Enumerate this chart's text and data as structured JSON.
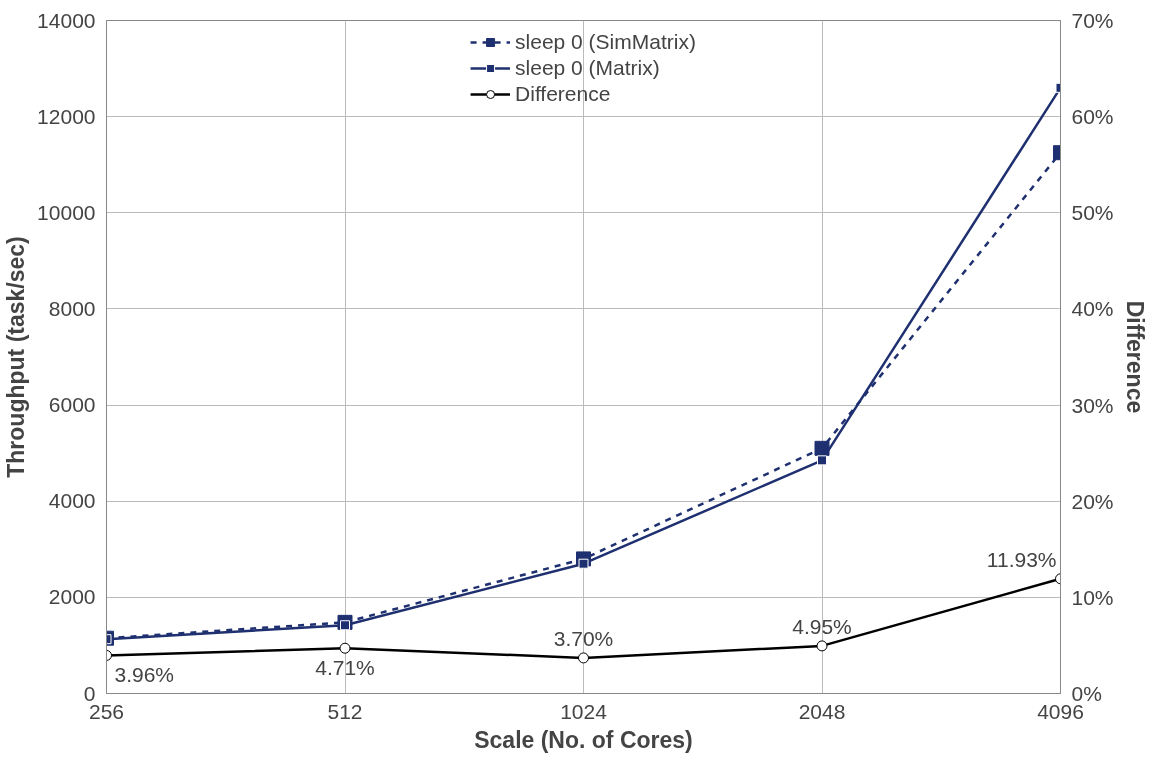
{
  "chart_data": {
    "type": "line",
    "xlabel": "Scale (No. of Cores)",
    "ylabel": "Throughput (task/sec)",
    "y2label": "Difference",
    "categories": [
      "256",
      "512",
      "1024",
      "2048",
      "4096"
    ],
    "series": [
      {
        "name": "sleep 0 (SimMatrix)",
        "color": "#1f3070",
        "line_style": "dashed",
        "marker": "square",
        "values": [
          1150,
          1480,
          2800,
          5100,
          11250
        ]
      },
      {
        "name": "sleep 0 (Matrix)",
        "color": "#1f3070",
        "line_style": "solid",
        "marker": "square",
        "values": [
          1130,
          1420,
          2700,
          4850,
          12600
        ]
      },
      {
        "name": "Difference",
        "color": "#000000",
        "line_style": "solid",
        "marker": "circle",
        "axis": "y2",
        "values": [
          3.96,
          4.71,
          3.7,
          4.95,
          11.93
        ],
        "value_labels": [
          "3.96%",
          "4.71%",
          "3.70%",
          "4.95%",
          "11.93%"
        ]
      }
    ],
    "ylim": [
      0,
      14000
    ],
    "yticks": [
      0,
      2000,
      4000,
      6000,
      8000,
      10000,
      12000,
      14000
    ],
    "y2lim": [
      0,
      70
    ],
    "y2ticks": [
      {
        "value": 0,
        "label": "0%"
      },
      {
        "value": 10,
        "label": "10%"
      },
      {
        "value": 20,
        "label": "20%"
      },
      {
        "value": 30,
        "label": "30%"
      },
      {
        "value": 40,
        "label": "40%"
      },
      {
        "value": 50,
        "label": "50%"
      },
      {
        "value": 60,
        "label": "60%"
      },
      {
        "value": 70,
        "label": "70%"
      }
    ],
    "grid": true,
    "legend": "top"
  }
}
